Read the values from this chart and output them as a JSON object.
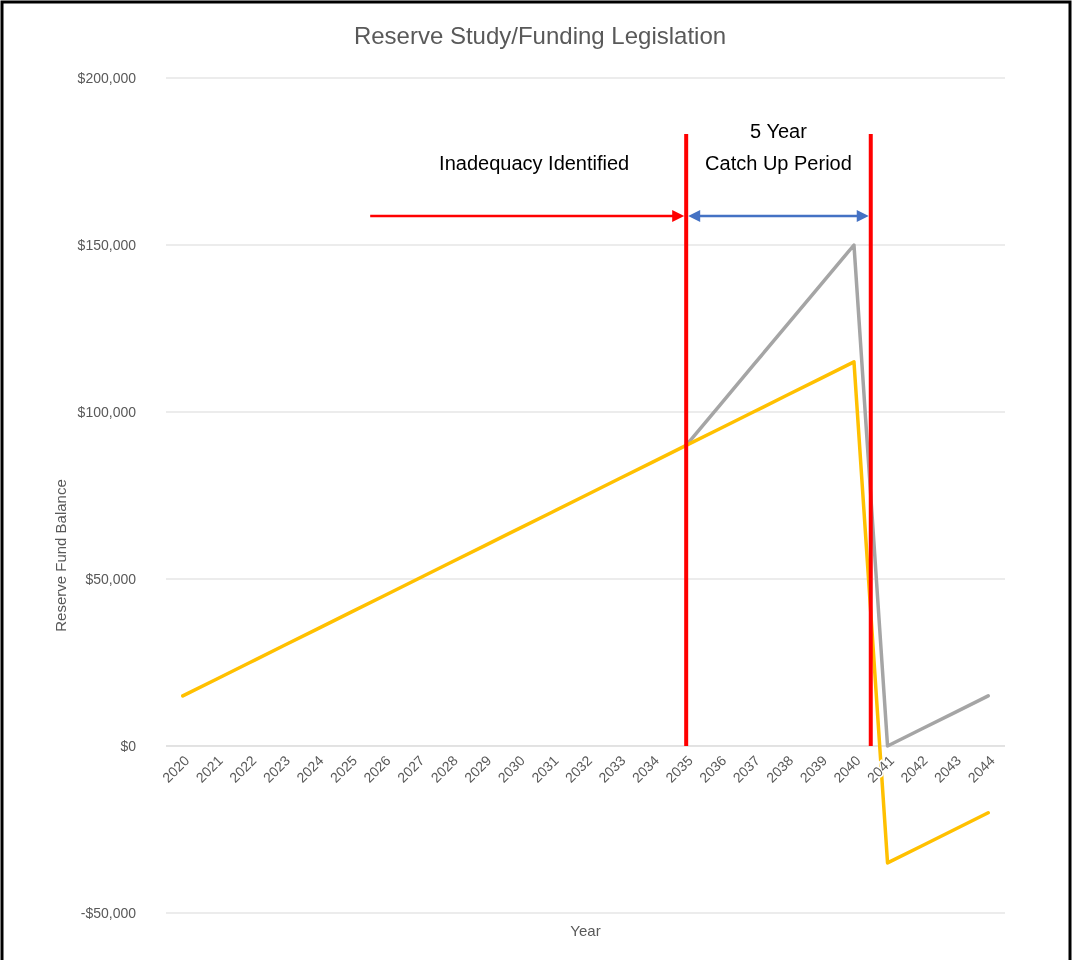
{
  "chart_data": {
    "type": "line",
    "title": "Reserve Study/Funding Legislation",
    "xlabel": "Year",
    "ylabel": "Reserve Fund Balance",
    "x": [
      2020,
      2021,
      2022,
      2023,
      2024,
      2025,
      2026,
      2027,
      2028,
      2029,
      2030,
      2031,
      2032,
      2033,
      2034,
      2035,
      2036,
      2037,
      2038,
      2039,
      2040,
      2041,
      2042,
      2043,
      2044
    ],
    "series": [
      {
        "color": "#a5a5a5",
        "values": [
          null,
          null,
          null,
          null,
          null,
          null,
          null,
          null,
          null,
          null,
          null,
          null,
          null,
          null,
          null,
          90000,
          102000,
          114000,
          126000,
          138000,
          150000,
          0,
          5000,
          10000,
          15000
        ]
      },
      {
        "color": "#ffc000",
        "values": [
          15000,
          20000,
          25000,
          30000,
          35000,
          40000,
          45000,
          50000,
          55000,
          60000,
          65000,
          70000,
          75000,
          80000,
          85000,
          90000,
          95000,
          100000,
          105000,
          110000,
          115000,
          -35000,
          -30000,
          -25000,
          -20000
        ]
      }
    ],
    "xlim": [
      2019.5,
      2044.5
    ],
    "xticks": [
      2020,
      2021,
      2022,
      2023,
      2024,
      2025,
      2026,
      2027,
      2028,
      2029,
      2030,
      2031,
      2032,
      2033,
      2034,
      2035,
      2036,
      2037,
      2038,
      2039,
      2040,
      2041,
      2042,
      2043,
      2044
    ],
    "ylim": [
      -50000,
      200000
    ],
    "yticks": [
      {
        "value": -50000,
        "label": "-$50,000"
      },
      {
        "value": 0,
        "label": "$0"
      },
      {
        "value": 50000,
        "label": "$50,000"
      },
      {
        "value": 100000,
        "label": "$100,000"
      },
      {
        "value": 150000,
        "label": "$150,000"
      },
      {
        "value": 200000,
        "label": "$200,000"
      }
    ],
    "grid": "y",
    "marker": "none",
    "line_style": "solid",
    "ref_lines": [
      {
        "axis": "x",
        "value": 2035,
        "color": "#ff0000"
      },
      {
        "axis": "x",
        "value": 2040.5,
        "color": "#ff0000"
      }
    ],
    "annotations": [
      "Inadequacy Identified",
      "5 Year\nCatch Up Period"
    ]
  }
}
